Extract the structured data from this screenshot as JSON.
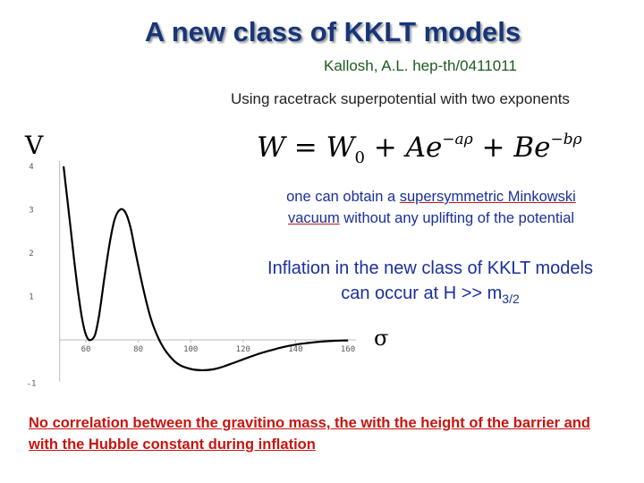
{
  "slide": {
    "title": "A new class of KKLT models",
    "citation": "Kallosh, A.L. hep-th/0411011",
    "intro": "Using racetrack superpotential with two exponents",
    "formula": {
      "lhs": "W",
      "eq": " = ",
      "w0": "W",
      "w0_sub": "0",
      "plus1": " + ",
      "a": "Ae",
      "a_exp": "−aρ",
      "plus2": " + ",
      "b": "Be",
      "b_exp": "−bρ"
    },
    "susy": {
      "part1": "one can obtain a ",
      "underlined1": "supersymmetric Minkowski",
      "underlined2": "vacuum",
      "part2": " without any uplifting of the potential"
    },
    "inflation": {
      "text": "Inflation in the new class of KKLT models can occur at H >> m",
      "sub": "3/2"
    },
    "conclusion": "No correlation between the gravitino mass, the with the height of the barrier and with the Hubble constant during inflation"
  },
  "chart_data": {
    "type": "line",
    "xlabel": "σ",
    "ylabel": "V",
    "x_ticks": [
      "60",
      "80",
      "100",
      "120",
      "140",
      "160"
    ],
    "y_ticks": [
      "4",
      "3",
      "2",
      "1",
      "-1"
    ],
    "xlim": [
      50,
      163
    ],
    "ylim": [
      -1,
      4
    ],
    "series": [
      {
        "x": [
          51.5,
          53,
          54.5,
          56,
          57.5,
          59,
          60.5,
          62,
          63.5,
          65,
          67,
          69,
          71,
          73,
          75,
          77,
          79,
          82,
          85,
          88,
          91,
          95,
          100,
          105,
          110,
          115,
          120,
          125,
          130,
          135,
          140,
          145,
          150,
          155,
          160
        ],
        "y": [
          4.0,
          3.2,
          2.4,
          1.6,
          0.9,
          0.35,
          0.05,
          0.0,
          0.12,
          0.55,
          1.4,
          2.2,
          2.78,
          3.0,
          2.95,
          2.6,
          2.0,
          1.15,
          0.45,
          0.0,
          -0.3,
          -0.55,
          -0.67,
          -0.7,
          -0.66,
          -0.56,
          -0.45,
          -0.34,
          -0.25,
          -0.17,
          -0.11,
          -0.07,
          -0.04,
          -0.02,
          -0.01
        ]
      }
    ]
  }
}
